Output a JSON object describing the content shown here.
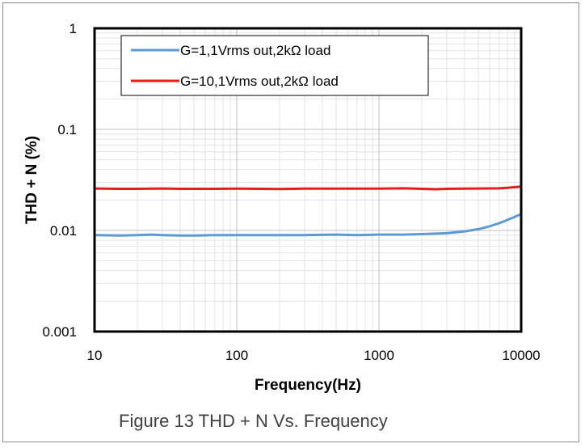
{
  "chart_data": {
    "type": "line",
    "caption": "Figure 13 THD + N Vs. Frequency",
    "xlabel": "Frequency(Hz)",
    "ylabel": "THD + N  (%)",
    "x_scale": "log",
    "y_scale": "log",
    "xlim": [
      10,
      10000
    ],
    "ylim": [
      0.001,
      1
    ],
    "x_ticks": [
      "10",
      "100",
      "1000",
      "10000"
    ],
    "y_ticks": [
      "0.001",
      "0.01",
      "0.1",
      "1"
    ],
    "grid": true,
    "legend_position": "top-left",
    "series": [
      {
        "name": "G=1,1Vrms out,2kΩ load",
        "color": "#5b9bd5",
        "x": [
          10,
          15,
          20,
          25,
          30,
          40,
          50,
          70,
          100,
          150,
          200,
          300,
          500,
          700,
          1000,
          1500,
          2000,
          3000,
          4000,
          5000,
          6000,
          7000,
          8000,
          9000,
          10000
        ],
        "y": [
          0.009,
          0.0089,
          0.009,
          0.0091,
          0.009,
          0.0089,
          0.0089,
          0.009,
          0.009,
          0.009,
          0.009,
          0.009,
          0.0091,
          0.009,
          0.0091,
          0.0091,
          0.0092,
          0.0094,
          0.0098,
          0.0103,
          0.011,
          0.0118,
          0.0127,
          0.0136,
          0.0145
        ]
      },
      {
        "name": "G=10,1Vrms out,2kΩ load",
        "color": "#e81c1c",
        "x": [
          10,
          15,
          20,
          30,
          40,
          50,
          70,
          100,
          150,
          200,
          300,
          500,
          700,
          1000,
          1500,
          2000,
          2500,
          3000,
          4000,
          5000,
          7000,
          8000,
          10000
        ],
        "y": [
          0.026,
          0.0258,
          0.0258,
          0.026,
          0.0258,
          0.0258,
          0.0258,
          0.0259,
          0.0258,
          0.0257,
          0.0259,
          0.0259,
          0.0259,
          0.0259,
          0.0261,
          0.0258,
          0.0256,
          0.0258,
          0.0259,
          0.026,
          0.0261,
          0.0264,
          0.0272
        ]
      }
    ]
  }
}
